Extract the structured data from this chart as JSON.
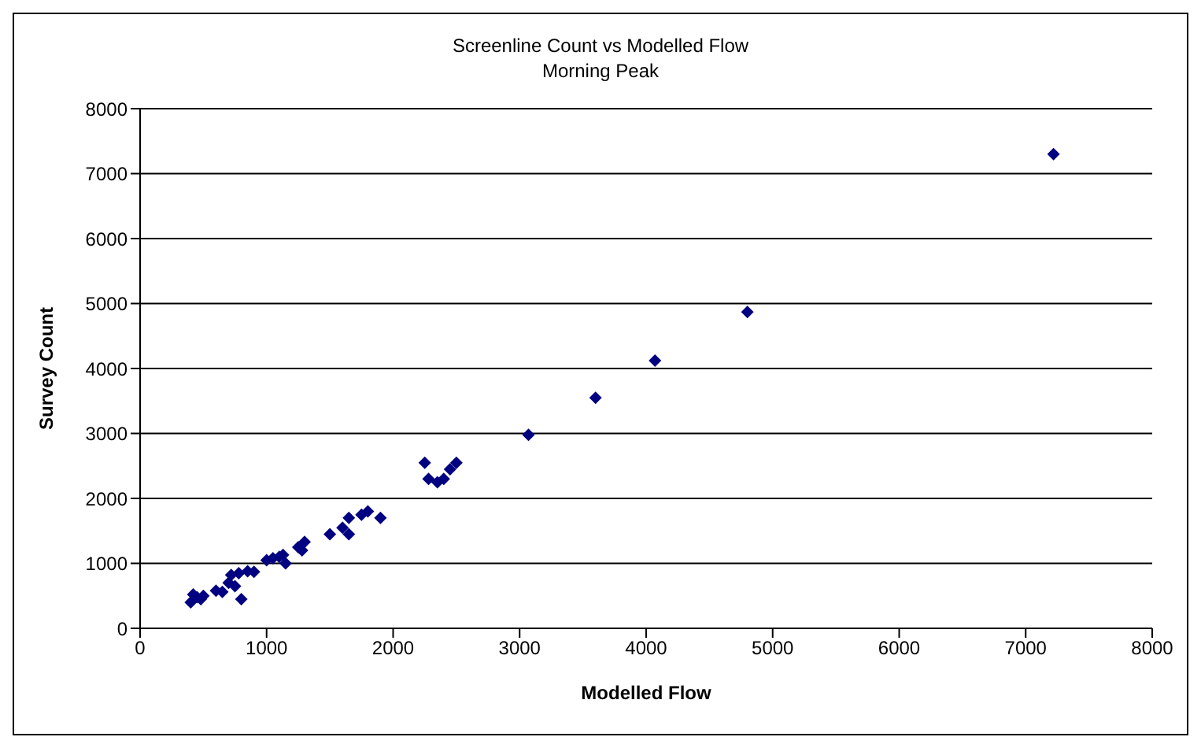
{
  "chart_data": {
    "type": "scatter",
    "title": "Screenline Count vs Modelled Flow",
    "subtitle": "Morning Peak",
    "xlabel": "Modelled Flow",
    "ylabel": "Survey Count",
    "x": [
      400,
      420,
      450,
      500,
      480,
      600,
      650,
      700,
      720,
      750,
      780,
      800,
      850,
      900,
      1000,
      1050,
      1100,
      1150,
      1130,
      1250,
      1280,
      1300,
      1500,
      1600,
      1650,
      1650,
      1750,
      1800,
      1900,
      2250,
      2280,
      2350,
      2400,
      2450,
      2500,
      3070,
      3600,
      4070,
      4800,
      7220
    ],
    "series": [
      {
        "color": "#000080",
        "values": [
          400,
          520,
          480,
          500,
          450,
          580,
          560,
          700,
          820,
          650,
          850,
          450,
          880,
          870,
          1050,
          1080,
          1100,
          1000,
          1130,
          1250,
          1200,
          1330,
          1450,
          1550,
          1450,
          1700,
          1750,
          1800,
          1700,
          2550,
          2300,
          2250,
          2300,
          2450,
          2550,
          2980,
          3550,
          4120,
          4870,
          7300
        ]
      }
    ],
    "xlim": [
      0,
      8000
    ],
    "xticks": [
      0,
      1000,
      2000,
      3000,
      4000,
      5000,
      6000,
      7000,
      8000
    ],
    "ylim": [
      0,
      8000
    ],
    "yticks": [
      0,
      1000,
      2000,
      3000,
      4000,
      5000,
      6000,
      7000,
      8000
    ],
    "grid": "y",
    "marker": "diamond"
  }
}
